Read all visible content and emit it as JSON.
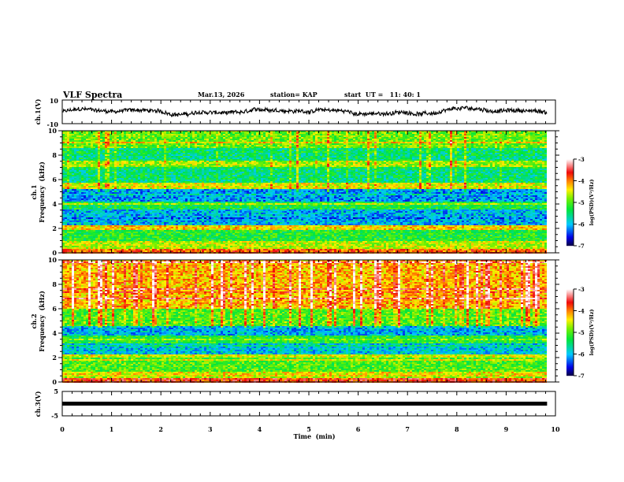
{
  "chart_data": {
    "type": "heatmap",
    "title": "VLF Spectra",
    "date": "Mar.13, 2026",
    "station": "station= KAP",
    "start_ut": "start  UT =   11: 40: 1",
    "xlabel": "Time  (min)",
    "xlim": [
      0,
      10
    ],
    "x_ticks": [
      "0",
      "1",
      "2",
      "3",
      "4",
      "5",
      "6",
      "7",
      "8",
      "9",
      "10"
    ],
    "data_end_min": 9.83,
    "panels": [
      {
        "id": "ch1-waveform",
        "type": "line",
        "ylabel": "ch.1(V)",
        "ylim": [
          -10,
          10
        ],
        "y_ticks": [
          "10",
          "-10"
        ],
        "amplitude_range": [
          -4,
          5
        ]
      },
      {
        "id": "ch1-spectrogram",
        "type": "heatmap",
        "ylabel_channel": "ch.1",
        "ylabel": "Frequency  (kHz)",
        "ylim": [
          0,
          10
        ],
        "y_ticks": [
          "0",
          "2",
          "4",
          "6",
          "8",
          "10"
        ],
        "colorbar": {
          "label": "log(PSD)(V²/Hz)",
          "range": [
            -7,
            -3
          ],
          "ticks": [
            "-3",
            "-4",
            "-5",
            "-6",
            "-7"
          ]
        },
        "bands": [
          {
            "f": [
              0.0,
              0.3
            ],
            "level": -3.9
          },
          {
            "f": [
              0.3,
              1.0
            ],
            "level": -4.6
          },
          {
            "f": [
              1.0,
              1.9
            ],
            "level": -5.2
          },
          {
            "f": [
              1.9,
              2.3
            ],
            "level": -4.3
          },
          {
            "f": [
              2.3,
              3.6
            ],
            "level": -6.0
          },
          {
            "f": [
              3.6,
              4.2
            ],
            "level": -5.3
          },
          {
            "f": [
              4.2,
              5.2
            ],
            "level": -6.1
          },
          {
            "f": [
              5.2,
              5.8
            ],
            "level": -4.5
          },
          {
            "f": [
              5.8,
              7.0
            ],
            "level": -5.5
          },
          {
            "f": [
              7.0,
              7.6
            ],
            "level": -4.7
          },
          {
            "f": [
              7.6,
              8.6
            ],
            "level": -5.5
          },
          {
            "f": [
              8.6,
              10.0
            ],
            "level": -4.9
          }
        ]
      },
      {
        "id": "ch2-spectrogram",
        "type": "heatmap",
        "ylabel_channel": "ch.2",
        "ylabel": "Frequency  (kHz)",
        "ylim": [
          0,
          10
        ],
        "y_ticks": [
          "0",
          "2",
          "4",
          "6",
          "8",
          "10"
        ],
        "colorbar": {
          "label": "log(PSD)(V²/Hz)",
          "range": [
            -7,
            -3
          ],
          "ticks": [
            "-3",
            "-4",
            "-5",
            "-6",
            "-7"
          ]
        },
        "bands": [
          {
            "f": [
              0.0,
              0.3
            ],
            "level": -3.7
          },
          {
            "f": [
              0.3,
              0.8
            ],
            "level": -4.4
          },
          {
            "f": [
              0.8,
              2.0
            ],
            "level": -5.0
          },
          {
            "f": [
              2.0,
              2.2
            ],
            "level": -4.5
          },
          {
            "f": [
              2.2,
              3.2
            ],
            "level": -5.9
          },
          {
            "f": [
              3.2,
              3.8
            ],
            "level": -5.2
          },
          {
            "f": [
              3.8,
              4.6
            ],
            "level": -6.0
          },
          {
            "f": [
              4.6,
              6.0
            ],
            "level": -5.0
          },
          {
            "f": [
              6.0,
              10.0
            ],
            "level": -4.2
          }
        ]
      },
      {
        "id": "ch3-waveform",
        "type": "line",
        "ylabel": "ch.3(V)",
        "ylim": [
          -5,
          5
        ],
        "y_ticks": [
          "5",
          "-5"
        ],
        "signal_level": 0
      }
    ]
  }
}
